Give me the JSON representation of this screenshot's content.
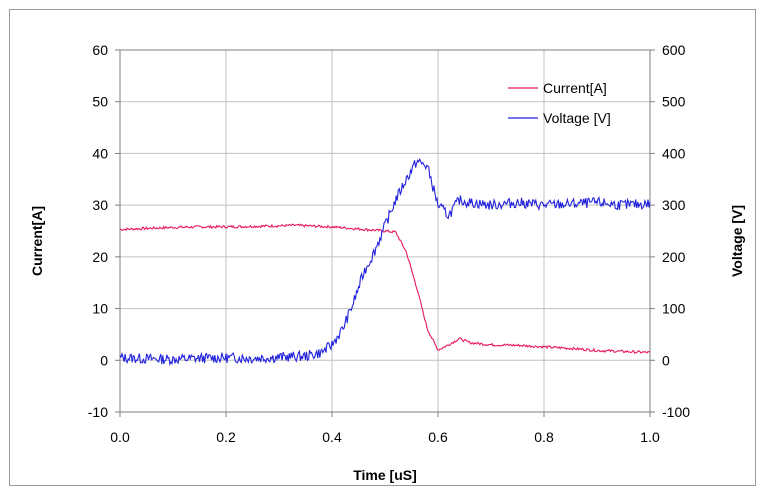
{
  "chart_data": {
    "type": "line",
    "xlabel": "Time [uS]",
    "ylabel_left": "Current[A]",
    "ylabel_right": "Voltage [V]",
    "xlim": [
      0.0,
      1.0
    ],
    "ylim_left": [
      -10,
      60
    ],
    "ylim_right": [
      -100,
      600
    ],
    "x_ticks": [
      "0.0",
      "0.2",
      "0.4",
      "0.6",
      "0.8",
      "1.0"
    ],
    "y_left_ticks": [
      "-10",
      "0",
      "10",
      "20",
      "30",
      "40",
      "50",
      "60"
    ],
    "y_right_ticks": [
      "-100",
      "0",
      "100",
      "200",
      "300",
      "400",
      "500",
      "600"
    ],
    "grid": true,
    "legend_position": "top-right",
    "series": [
      {
        "name": "Current[A]",
        "axis": "left",
        "color": "#e8185e",
        "x": [
          0.0,
          0.05,
          0.1,
          0.15,
          0.2,
          0.25,
          0.3,
          0.33,
          0.35,
          0.4,
          0.45,
          0.5,
          0.52,
          0.54,
          0.56,
          0.58,
          0.6,
          0.62,
          0.64,
          0.66,
          0.7,
          0.75,
          0.8,
          0.85,
          0.9,
          0.95,
          1.0
        ],
        "values": [
          25.3,
          25.5,
          25.7,
          25.8,
          25.8,
          25.9,
          26.0,
          26.1,
          26.0,
          25.8,
          25.4,
          25.0,
          24.8,
          21.0,
          14.0,
          6.0,
          2.0,
          3.0,
          4.2,
          3.4,
          3.0,
          2.9,
          2.6,
          2.3,
          1.9,
          1.7,
          1.5
        ]
      },
      {
        "name": "Voltage [V]",
        "axis": "right",
        "color": "#2222dd",
        "x": [
          0.0,
          0.05,
          0.1,
          0.15,
          0.2,
          0.25,
          0.3,
          0.35,
          0.38,
          0.4,
          0.42,
          0.44,
          0.46,
          0.48,
          0.5,
          0.52,
          0.54,
          0.56,
          0.58,
          0.6,
          0.62,
          0.64,
          0.66,
          0.7,
          0.75,
          0.8,
          0.85,
          0.9,
          0.95,
          1.0
        ],
        "values": [
          5,
          3,
          2,
          4,
          5,
          4,
          6,
          8,
          15,
          30,
          60,
          110,
          170,
          210,
          260,
          310,
          350,
          385,
          375,
          300,
          280,
          310,
          305,
          300,
          305,
          300,
          302,
          305,
          300,
          303
        ]
      }
    ]
  }
}
